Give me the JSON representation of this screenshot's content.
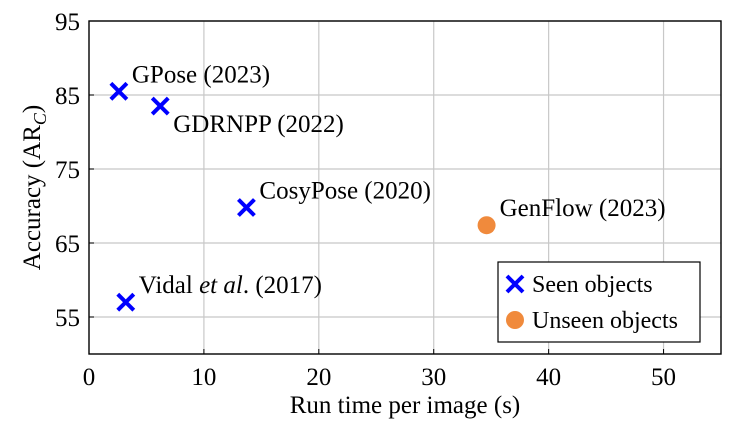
{
  "chart_data": {
    "type": "scatter",
    "xlabel": "Run time per image (s)",
    "ylabel": "Accuracy (AR",
    "ylabel_sub": "C",
    "ylabel_close": ")",
    "xlim": [
      0,
      55
    ],
    "ylim": [
      50,
      95
    ],
    "xticks": [
      0,
      10,
      20,
      30,
      40,
      50
    ],
    "yticks": [
      55,
      65,
      75,
      85,
      95
    ],
    "grid": true,
    "legend_position": "bottom-right",
    "series": [
      {
        "name": "Seen objects",
        "marker": "cross",
        "color": "#0000ff",
        "points": [
          {
            "x": 2.6,
            "y": 85.5,
            "label": "GPose (2023)",
            "label_side": "upper-right"
          },
          {
            "x": 6.2,
            "y": 83.5,
            "label": "GDRNPP (2022)",
            "label_side": "lower-right"
          },
          {
            "x": 13.7,
            "y": 69.8,
            "label": "CosyPose (2020)",
            "label_side": "upper-right"
          },
          {
            "x": 3.2,
            "y": 57.0,
            "label_prefix": "Vidal ",
            "label_italic": "et al",
            "label_suffix": ". (2017)",
            "label_side": "upper-right"
          }
        ]
      },
      {
        "name": "Unseen objects",
        "marker": "circle",
        "color": "#f08a3c",
        "points": [
          {
            "x": 34.6,
            "y": 67.4,
            "label": "GenFlow (2023)",
            "label_side": "upper-right"
          }
        ]
      }
    ]
  }
}
